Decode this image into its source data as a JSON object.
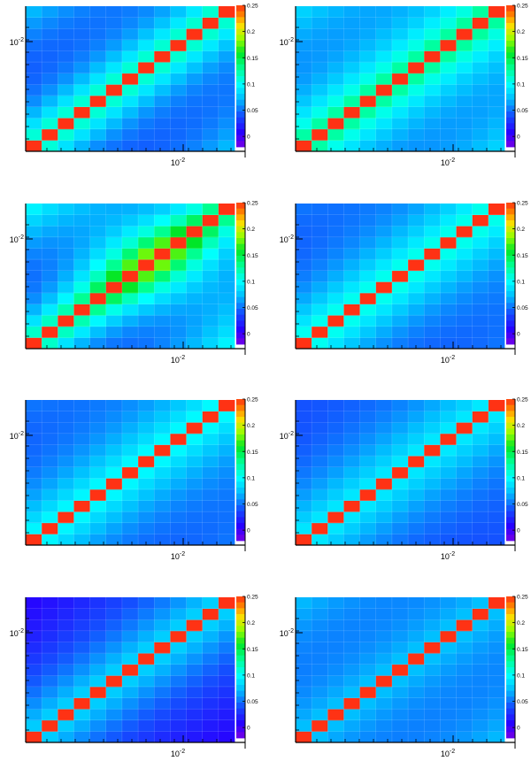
{
  "chart_data": {
    "type": "heatmap",
    "nbins": 13,
    "xscale": "log",
    "yscale": "log",
    "colorbar": {
      "range": [
        -0.02,
        0.25
      ],
      "ticks": [
        "0",
        "0.05",
        "0.1",
        "0.15",
        "0.2",
        "0.25"
      ],
      "tick_values": [
        0,
        0.05,
        0.1,
        0.15,
        0.2,
        0.25
      ]
    },
    "panels": [
      {
        "diag": 0.25,
        "near": 0.14,
        "far": 0.07,
        "dk": 0.35,
        "ddx": 0.2,
        "x_label": "10^-2",
        "y_label": "10^-2"
      },
      {
        "diag": 0.25,
        "near": 0.15,
        "far": 0.08,
        "dk": 0.45,
        "ddx": 0.15,
        "x_label": "10^-2",
        "y_label": "10^-2"
      },
      {
        "diag": 0.25,
        "near": 0.15,
        "far": 0.09,
        "dk": 0.3,
        "ddx": 0.2,
        "peak": 0.23,
        "peak_pos": 0.62,
        "peak_w": 0.28,
        "x_label": "10^-2",
        "y_label": "10^-2"
      },
      {
        "diag": 0.25,
        "near": 0.12,
        "far": 0.05,
        "dk": 0.55,
        "ddx": 0.2,
        "x_label": "10^-2",
        "y_label": "10^-2"
      },
      {
        "diag": 0.25,
        "near": 0.11,
        "far": 0.05,
        "dk": 0.6,
        "ddx": 0.2,
        "x_label": "10^-2",
        "y_label": "10^-2"
      },
      {
        "diag": 0.25,
        "near": 0.1,
        "far": 0.04,
        "dk": 0.7,
        "ddx": 0.15,
        "x_label": "10^-2",
        "y_label": "10^-2"
      },
      {
        "diag": 0.25,
        "near": 0.09,
        "far": 0.01,
        "dk": 0.6,
        "ddx": 0.15,
        "x_label": "10^-2",
        "y_label": "10^-2"
      },
      {
        "diag": 0.25,
        "near": 0.08,
        "far": 0.07,
        "dk": 0.8,
        "ddx": 0.12,
        "x_label": "10^-2",
        "y_label": "10^-2"
      }
    ]
  }
}
